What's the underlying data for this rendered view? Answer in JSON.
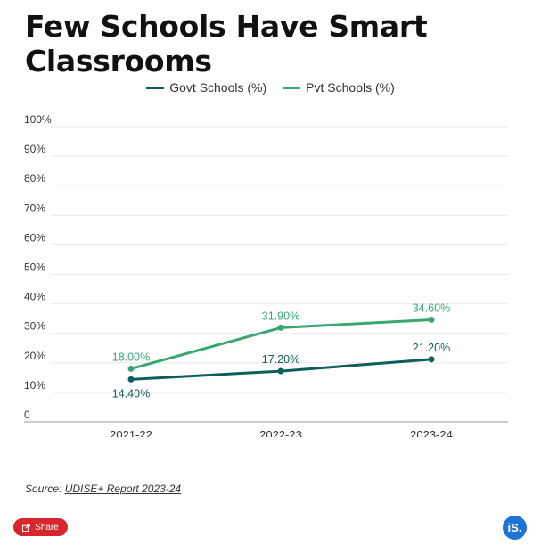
{
  "title": "Few Schools Have Smart Classrooms",
  "colors": {
    "govt": "#0f5e5b",
    "pvt": "#3aa673",
    "share": "#d7262d",
    "logo": "#1e73d8"
  },
  "legend": [
    {
      "label": "Govt Schools (%)"
    },
    {
      "label": "Pvt Schools (%)"
    }
  ],
  "source": {
    "prefix": "Source: ",
    "link_text": "UDISE+ Report 2023-24"
  },
  "share_button": {
    "label": "Share",
    "icon": "share-icon"
  },
  "logo": {
    "text": "iS."
  },
  "chart_data": {
    "type": "line",
    "title": "Few Schools Have Smart Classrooms",
    "categories": [
      "2021-22",
      "2022-23",
      "2023-24"
    ],
    "series": [
      {
        "name": "Govt Schools (%)",
        "values": [
          14.4,
          17.2,
          21.2
        ],
        "labels": [
          "14.40%",
          "17.20%",
          "21.20%"
        ]
      },
      {
        "name": "Pvt Schools (%)",
        "values": [
          18.0,
          31.9,
          34.6
        ],
        "labels": [
          "18.00%",
          "31.90%",
          "34.60%"
        ]
      }
    ],
    "ylim": [
      0,
      100
    ],
    "yticks": [
      "0",
      "10%",
      "20%",
      "30%",
      "40%",
      "50%",
      "60%",
      "70%",
      "80%",
      "90%",
      "100%"
    ],
    "grid": true,
    "legend_position": "top-center"
  }
}
